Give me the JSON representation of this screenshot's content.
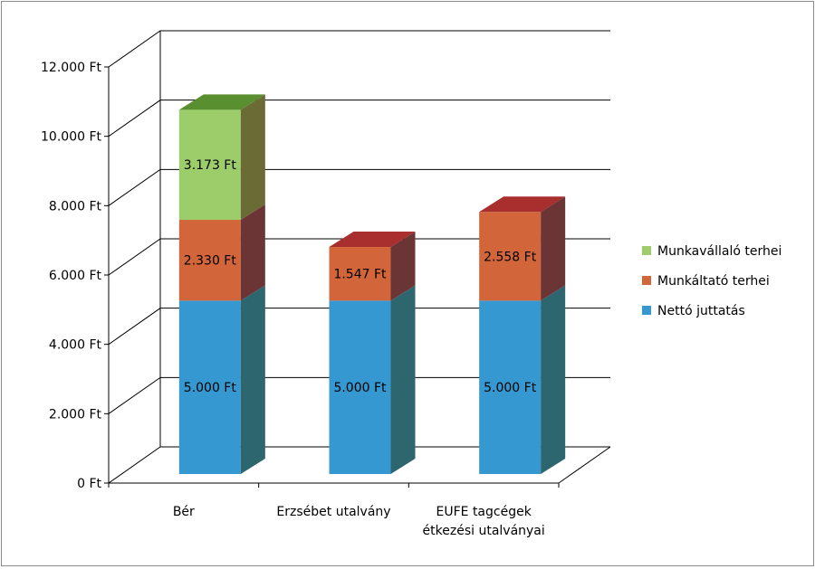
{
  "chart_data": {
    "type": "bar",
    "stacked": true,
    "three_d": true,
    "categories": [
      [
        "Bér"
      ],
      [
        "Erzsébet utalvány"
      ],
      [
        "EUFE tagcégek",
        "étkezési utalványai"
      ]
    ],
    "series": [
      {
        "name": "Nettó juttatás",
        "values": [
          5000,
          5000,
          5000
        ],
        "labels": [
          "5.000 Ft",
          "5.000 Ft",
          "5.000 Ft"
        ],
        "front": "#3598d0",
        "side": "#2e6670",
        "top": "#2e6670"
      },
      {
        "name": "Munkáltató terhei",
        "values": [
          2330,
          1547,
          2558
        ],
        "labels": [
          "2.330 Ft",
          "1.547 Ft",
          "2.558 Ft"
        ],
        "front": "#d2663a",
        "side": "#6b3536",
        "top": "#a92e2e"
      },
      {
        "name": "Munkavállaló terhei",
        "values": [
          3173,
          null,
          null
        ],
        "labels": [
          "3.173 Ft",
          "",
          ""
        ],
        "front": "#9dcc6b",
        "side": "#6b6b35",
        "top": "#5a8f2f"
      }
    ],
    "yticks": [
      0,
      2000,
      4000,
      6000,
      8000,
      10000,
      12000
    ],
    "ytick_labels": [
      "0 Ft",
      "2.000 Ft",
      "4.000 Ft",
      "6.000 Ft",
      "8.000 Ft",
      "10.000 Ft",
      "12.000 Ft"
    ],
    "ylim": [
      0,
      12000
    ],
    "legend_position": "right",
    "legend_order": [
      "Munkavállaló terhei",
      "Munkáltató terhei",
      "Nettó juttatás"
    ],
    "grid": true
  }
}
